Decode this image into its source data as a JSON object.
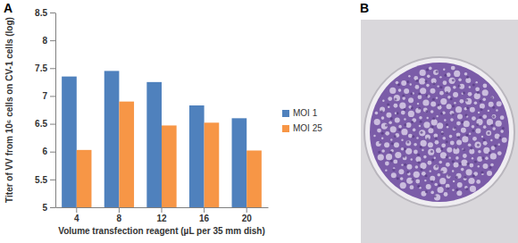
{
  "chart_data": {
    "type": "bar",
    "y_label": "Titer of VV from 10⁶ cells on CV-1 cells (log)",
    "x_label": "Volume transfection reagent (µL per 35 mm dish)",
    "categories": [
      "4",
      "8",
      "12",
      "16",
      "20"
    ],
    "series": [
      {
        "name": "MOI 1",
        "color": "#4f81bd",
        "values": [
          7.35,
          7.45,
          7.25,
          6.83,
          6.6
        ]
      },
      {
        "name": "MOI 25",
        "color": "#f79646",
        "values": [
          6.03,
          6.9,
          6.47,
          6.52,
          6.02
        ]
      }
    ],
    "ylim": [
      5,
      8.5
    ],
    "yticks": [
      5,
      5.5,
      6,
      6.5,
      7,
      7.5,
      8,
      8.5
    ],
    "grid": false,
    "legend": "right"
  },
  "panel_labels": [
    "A",
    "B"
  ]
}
